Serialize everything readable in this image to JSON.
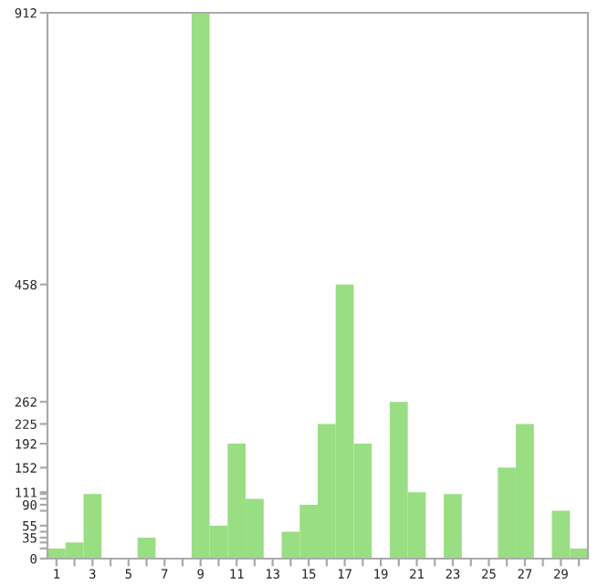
{
  "chart_data": {
    "type": "bar",
    "categories": [
      "1",
      null,
      "3",
      null,
      "5",
      null,
      "7",
      null,
      "9",
      null,
      "11",
      null,
      "13",
      null,
      "15",
      null,
      "17",
      null,
      "19",
      null,
      "21",
      null,
      "23",
      null,
      "25",
      null,
      "27",
      null,
      "29",
      null
    ],
    "values": [
      17,
      27,
      108,
      0,
      0,
      35,
      0,
      0,
      912,
      55,
      192,
      100,
      0,
      45,
      90,
      225,
      458,
      192,
      0,
      262,
      111,
      0,
      108,
      0,
      0,
      152,
      225,
      0,
      80,
      17
    ],
    "color": "#9ade84",
    "ylim": [
      0,
      912
    ],
    "yticks": [
      0,
      {
        "value": 17,
        "label": null
      },
      {
        "value": 27,
        "label": null
      },
      35,
      {
        "value": 45,
        "label": null
      },
      55,
      {
        "value": 80,
        "label": null
      },
      90,
      {
        "value": 100,
        "label": null
      },
      {
        "value": 108,
        "label": null
      },
      111,
      152,
      192,
      225,
      262,
      458,
      912
    ],
    "grid": false
  }
}
